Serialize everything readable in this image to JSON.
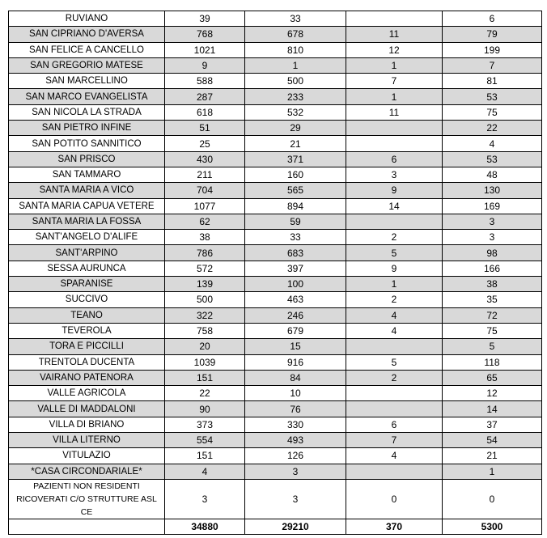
{
  "table": {
    "rows": [
      [
        "RUVIANO",
        "39",
        "33",
        null,
        "6"
      ],
      [
        "SAN CIPRIANO D'AVERSA",
        "768",
        "678",
        "11",
        "79"
      ],
      [
        "SAN FELICE A CANCELLO",
        "1021",
        "810",
        "12",
        "199"
      ],
      [
        "SAN GREGORIO MATESE",
        "9",
        "1",
        "1",
        "7"
      ],
      [
        "SAN MARCELLINO",
        "588",
        "500",
        "7",
        "81"
      ],
      [
        "SAN MARCO EVANGELISTA",
        "287",
        "233",
        "1",
        "53"
      ],
      [
        "SAN NICOLA LA STRADA",
        "618",
        "532",
        "11",
        "75"
      ],
      [
        "SAN PIETRO INFINE",
        "51",
        "29",
        null,
        "22"
      ],
      [
        "SAN POTITO SANNITICO",
        "25",
        "21",
        null,
        "4"
      ],
      [
        "SAN PRISCO",
        "430",
        "371",
        "6",
        "53"
      ],
      [
        "SAN TAMMARO",
        "211",
        "160",
        "3",
        "48"
      ],
      [
        "SANTA MARIA A VICO",
        "704",
        "565",
        "9",
        "130"
      ],
      [
        "SANTA MARIA CAPUA VETERE",
        "1077",
        "894",
        "14",
        "169"
      ],
      [
        "SANTA MARIA LA FOSSA",
        "62",
        "59",
        null,
        "3"
      ],
      [
        "SANT'ANGELO D'ALIFE",
        "38",
        "33",
        "2",
        "3"
      ],
      [
        "SANT'ARPINO",
        "786",
        "683",
        "5",
        "98"
      ],
      [
        "SESSA AURUNCA",
        "572",
        "397",
        "9",
        "166"
      ],
      [
        "SPARANISE",
        "139",
        "100",
        "1",
        "38"
      ],
      [
        "SUCCIVO",
        "500",
        "463",
        "2",
        "35"
      ],
      [
        "TEANO",
        "322",
        "246",
        "4",
        "72"
      ],
      [
        "TEVEROLA",
        "758",
        "679",
        "4",
        "75"
      ],
      [
        "TORA E PICCILLI",
        "20",
        "15",
        null,
        "5"
      ],
      [
        "TRENTOLA DUCENTA",
        "1039",
        "916",
        "5",
        "118"
      ],
      [
        "VAIRANO PATENORA",
        "151",
        "84",
        "2",
        "65"
      ],
      [
        "VALLE AGRICOLA",
        "22",
        "10",
        null,
        "12"
      ],
      [
        "VALLE DI MADDALONI",
        "90",
        "76",
        null,
        "14"
      ],
      [
        "VILLA DI BRIANO",
        "373",
        "330",
        "6",
        "37"
      ],
      [
        "VILLA LITERNO",
        "554",
        "493",
        "7",
        "54"
      ],
      [
        "VITULAZIO",
        "151",
        "126",
        "4",
        "21"
      ],
      [
        "*CASA CIRCONDARIALE*",
        "4",
        "3",
        null,
        "1"
      ],
      [
        "PAZIENTI NON RESIDENTI RICOVERATI C/O STRUTTURE ASL CE",
        "3",
        "3",
        "0",
        "0"
      ]
    ],
    "totals": [
      "34880",
      "29210",
      "370",
      "5300"
    ]
  }
}
